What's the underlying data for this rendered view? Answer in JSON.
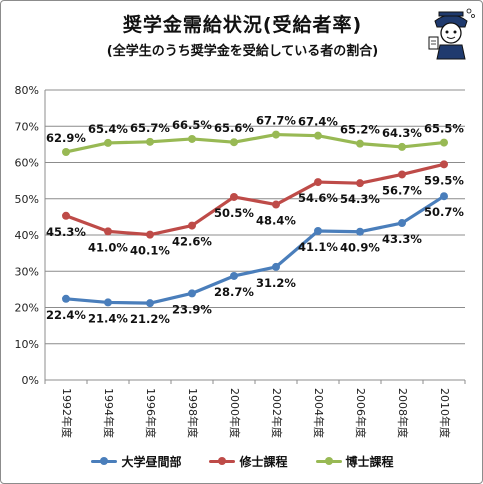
{
  "title": "奨学金需給状況(受給者率)",
  "subtitle": "(全学生のうち奨学金を受給している者の割合)",
  "chart_data": {
    "type": "line",
    "categories": [
      "1992年度",
      "1994年度",
      "1996年度",
      "1998年度",
      "2000年度",
      "2002年度",
      "2004年度",
      "2006年度",
      "2008年度",
      "2010年度"
    ],
    "ylim": [
      0,
      80
    ],
    "yticks": [
      "0%",
      "10%",
      "20%",
      "30%",
      "40%",
      "50%",
      "60%",
      "70%",
      "80%"
    ],
    "grid": true,
    "legend": "bottom",
    "series": [
      {
        "name": "大学昼間部",
        "color": "#4a7ebb",
        "values": [
          22.4,
          21.4,
          21.2,
          23.9,
          28.7,
          31.2,
          41.1,
          40.9,
          43.3,
          50.7
        ],
        "labels": [
          "22.4%",
          "21.4%",
          "21.2%",
          "23.9%",
          "28.7%",
          "31.2%",
          "41.1%",
          "40.9%",
          "43.3%",
          "50.7%"
        ]
      },
      {
        "name": "修士課程",
        "color": "#be4b48",
        "values": [
          45.3,
          41.0,
          40.1,
          42.6,
          50.5,
          48.4,
          54.6,
          54.3,
          56.7,
          59.5
        ],
        "labels": [
          "45.3%",
          "41.0%",
          "40.1%",
          "42.6%",
          "50.5%",
          "48.4%",
          "54.6%",
          "54.3%",
          "56.7%",
          "59.5%"
        ]
      },
      {
        "name": "博士課程",
        "color": "#98b954",
        "values": [
          62.9,
          65.4,
          65.7,
          66.5,
          65.6,
          67.7,
          67.4,
          65.2,
          64.3,
          65.5
        ],
        "labels": [
          "62.9%",
          "65.4%",
          "65.7%",
          "66.5%",
          "65.6%",
          "67.7%",
          "67.4%",
          "65.2%",
          "64.3%",
          "65.5%"
        ]
      }
    ]
  }
}
